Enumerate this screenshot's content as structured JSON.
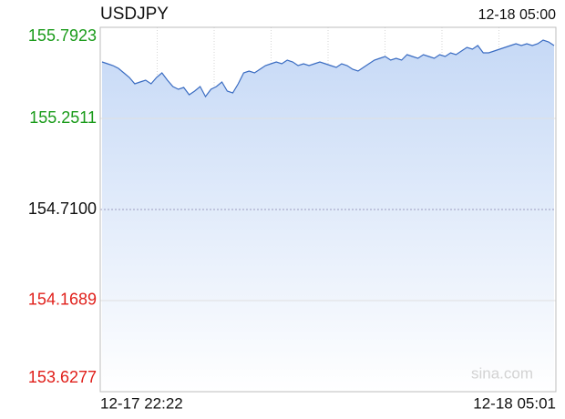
{
  "chart_data": {
    "type": "line",
    "title": "USDJPY",
    "timestamp": "12-18 05:00",
    "watermark": "sina.com",
    "categories": [
      "12-17 22:22",
      null,
      null,
      null,
      null,
      null,
      null,
      null,
      null,
      null,
      null,
      null,
      null,
      null,
      null,
      null,
      null,
      null,
      null,
      null,
      null,
      null,
      null,
      null,
      null,
      null,
      null,
      null,
      null,
      null,
      null,
      null,
      null,
      null,
      null,
      null,
      null,
      null,
      null,
      null,
      null,
      null,
      null,
      null,
      null,
      null,
      null,
      null,
      null,
      null,
      null,
      null,
      null,
      null,
      null,
      null,
      null,
      null,
      null,
      null,
      null,
      null,
      null,
      null,
      null,
      null,
      null,
      null,
      null,
      null,
      null,
      null,
      null,
      null,
      null,
      null,
      null,
      null,
      null,
      null,
      null,
      null,
      null,
      "12-18 05:01"
    ],
    "series": [
      {
        "name": "USDJPY",
        "color": "#3a6cc2",
        "fill": "#c9dbf7",
        "values": [
          155.5867,
          155.5758,
          155.565,
          155.5488,
          155.5217,
          155.4947,
          155.4568,
          155.4676,
          155.4785,
          155.4568,
          155.4947,
          155.5217,
          155.4785,
          155.4405,
          155.4243,
          155.4351,
          155.3919,
          155.4135,
          155.4405,
          155.381,
          155.4243,
          155.4405,
          155.4676,
          155.4135,
          155.4027,
          155.4568,
          155.5217,
          155.5326,
          155.5217,
          155.5434,
          155.565,
          155.5758,
          155.5867,
          155.5758,
          155.5975,
          155.5867,
          155.565,
          155.5758,
          155.565,
          155.5758,
          155.5867,
          155.5758,
          155.565,
          155.5542,
          155.5758,
          155.565,
          155.5434,
          155.5326,
          155.5542,
          155.5758,
          155.5975,
          155.6083,
          155.6191,
          155.5975,
          155.6083,
          155.5975,
          155.63,
          155.6191,
          155.6083,
          155.63,
          155.6191,
          155.6083,
          155.63,
          155.6191,
          155.6408,
          155.63,
          155.6516,
          155.6733,
          155.6624,
          155.6841,
          155.6408,
          155.6408,
          155.6516,
          155.6624,
          155.6733,
          155.6841,
          155.6949,
          155.6841,
          155.6949,
          155.6841,
          155.6949,
          155.7165,
          155.7057,
          155.6841
        ]
      }
    ],
    "ylim": [
      153.6277,
      155.7923
    ],
    "yticks": [
      155.7923,
      155.2511,
      {
        "value": 154.71,
        "label": "154.7100"
      },
      154.1689,
      153.6277
    ],
    "ytick_colors": [
      "#1a9b1a",
      "#1a9b1a",
      "#111111",
      "#e0201b",
      "#e0201b"
    ],
    "grid": true
  }
}
